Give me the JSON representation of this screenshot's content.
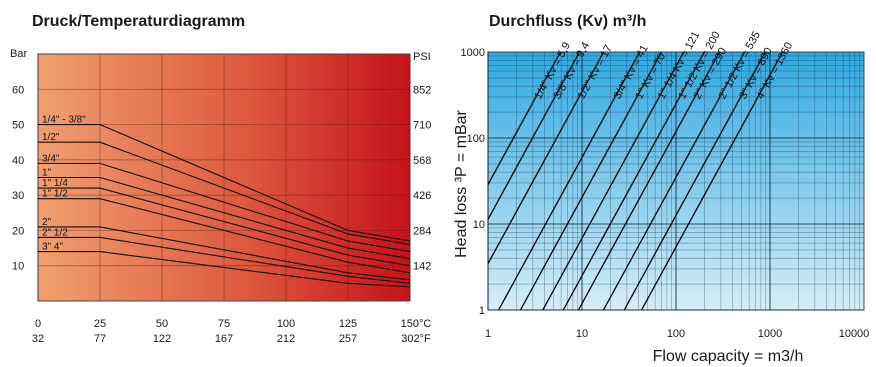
{
  "chart_data": [
    {
      "type": "line",
      "title": "Druck/Temperaturdiagramm",
      "xlabel": "",
      "ylabel": "",
      "y_unit_left": "Bar",
      "y_unit_right": "PSI",
      "x_ticks_celsius": [
        "0",
        "25",
        "50",
        "75",
        "100",
        "125",
        "150°C"
      ],
      "x_ticks_fahrenheit": [
        "32",
        "77",
        "122",
        "167",
        "212",
        "257",
        "302°F"
      ],
      "y_ticks_bar": [
        "60",
        "50",
        "40",
        "30",
        "20",
        "10"
      ],
      "y_ticks_psi": [
        "852",
        "710",
        "568",
        "426",
        "284",
        "142"
      ],
      "xlim": [
        0,
        150
      ],
      "ylim": [
        0,
        70
      ],
      "grid": true,
      "series": [
        {
          "name": "1/4\" - 3/8\"",
          "x": [
            0,
            25,
            125,
            150
          ],
          "y": [
            50,
            50,
            20,
            17
          ]
        },
        {
          "name": "1/2\"",
          "x": [
            0,
            25,
            125,
            150
          ],
          "y": [
            45,
            45,
            19,
            16
          ]
        },
        {
          "name": "3/4\"",
          "x": [
            0,
            25,
            125,
            150
          ],
          "y": [
            39,
            39,
            17,
            14
          ]
        },
        {
          "name": "1\"",
          "x": [
            0,
            25,
            125,
            150
          ],
          "y": [
            35,
            35,
            15,
            12
          ]
        },
        {
          "name": "1\" 1/4",
          "x": [
            0,
            25,
            125,
            150
          ],
          "y": [
            32,
            32,
            13,
            10
          ]
        },
        {
          "name": "1\" 1/2",
          "x": [
            0,
            25,
            125,
            150
          ],
          "y": [
            29,
            29,
            11,
            8
          ]
        },
        {
          "name": "2\"",
          "x": [
            0,
            25,
            125,
            150
          ],
          "y": [
            21,
            21,
            8,
            6
          ]
        },
        {
          "name": "2\" 1/2",
          "x": [
            0,
            25,
            125,
            150
          ],
          "y": [
            18,
            18,
            7,
            5
          ]
        },
        {
          "name": "3\" 4\"",
          "x": [
            0,
            25,
            125,
            150
          ],
          "y": [
            14,
            14,
            5,
            4
          ]
        }
      ]
    },
    {
      "type": "line",
      "title": "Durchfluss (Kv) m³/h",
      "xlabel": "Flow capacity = m3/h",
      "ylabel": "Head loss ³P = mBar",
      "x_scale": "log",
      "y_scale": "log",
      "xlim": [
        1,
        10000
      ],
      "ylim": [
        1,
        1000
      ],
      "x_ticks": [
        "1",
        "10",
        "100",
        "1000",
        "10000"
      ],
      "y_ticks": [
        "1000",
        "100",
        "10",
        "1"
      ],
      "grid": true,
      "series": [
        {
          "name": "1/4\" Kv = 5,9",
          "kv": 5.9
        },
        {
          "name": "3/8\" Kv = 9,4",
          "kv": 9.4
        },
        {
          "name": "1/2\" Kv = 17",
          "kv": 17
        },
        {
          "name": "3/4\" Kv = 41",
          "kv": 41
        },
        {
          "name": "1\" Kv = 70",
          "kv": 70
        },
        {
          "name": "1\" 1/4 Kv = 121",
          "kv": 121
        },
        {
          "name": "1\" 1/2 Kv = 200",
          "kv": 200
        },
        {
          "name": "2\" Kv = 290",
          "kv": 290
        },
        {
          "name": "2\" 1/2 Kv = 535",
          "kv": 535
        },
        {
          "name": "3\" Kv = 890",
          "kv": 890
        },
        {
          "name": "4\" Kv = 1360",
          "kv": 1360
        }
      ]
    }
  ],
  "colors": {
    "left_bg_start": "#f0a070",
    "left_bg_end": "#c4121a",
    "right_bg_top": "#2fa8e0",
    "right_bg_bottom": "#d6eef9"
  }
}
